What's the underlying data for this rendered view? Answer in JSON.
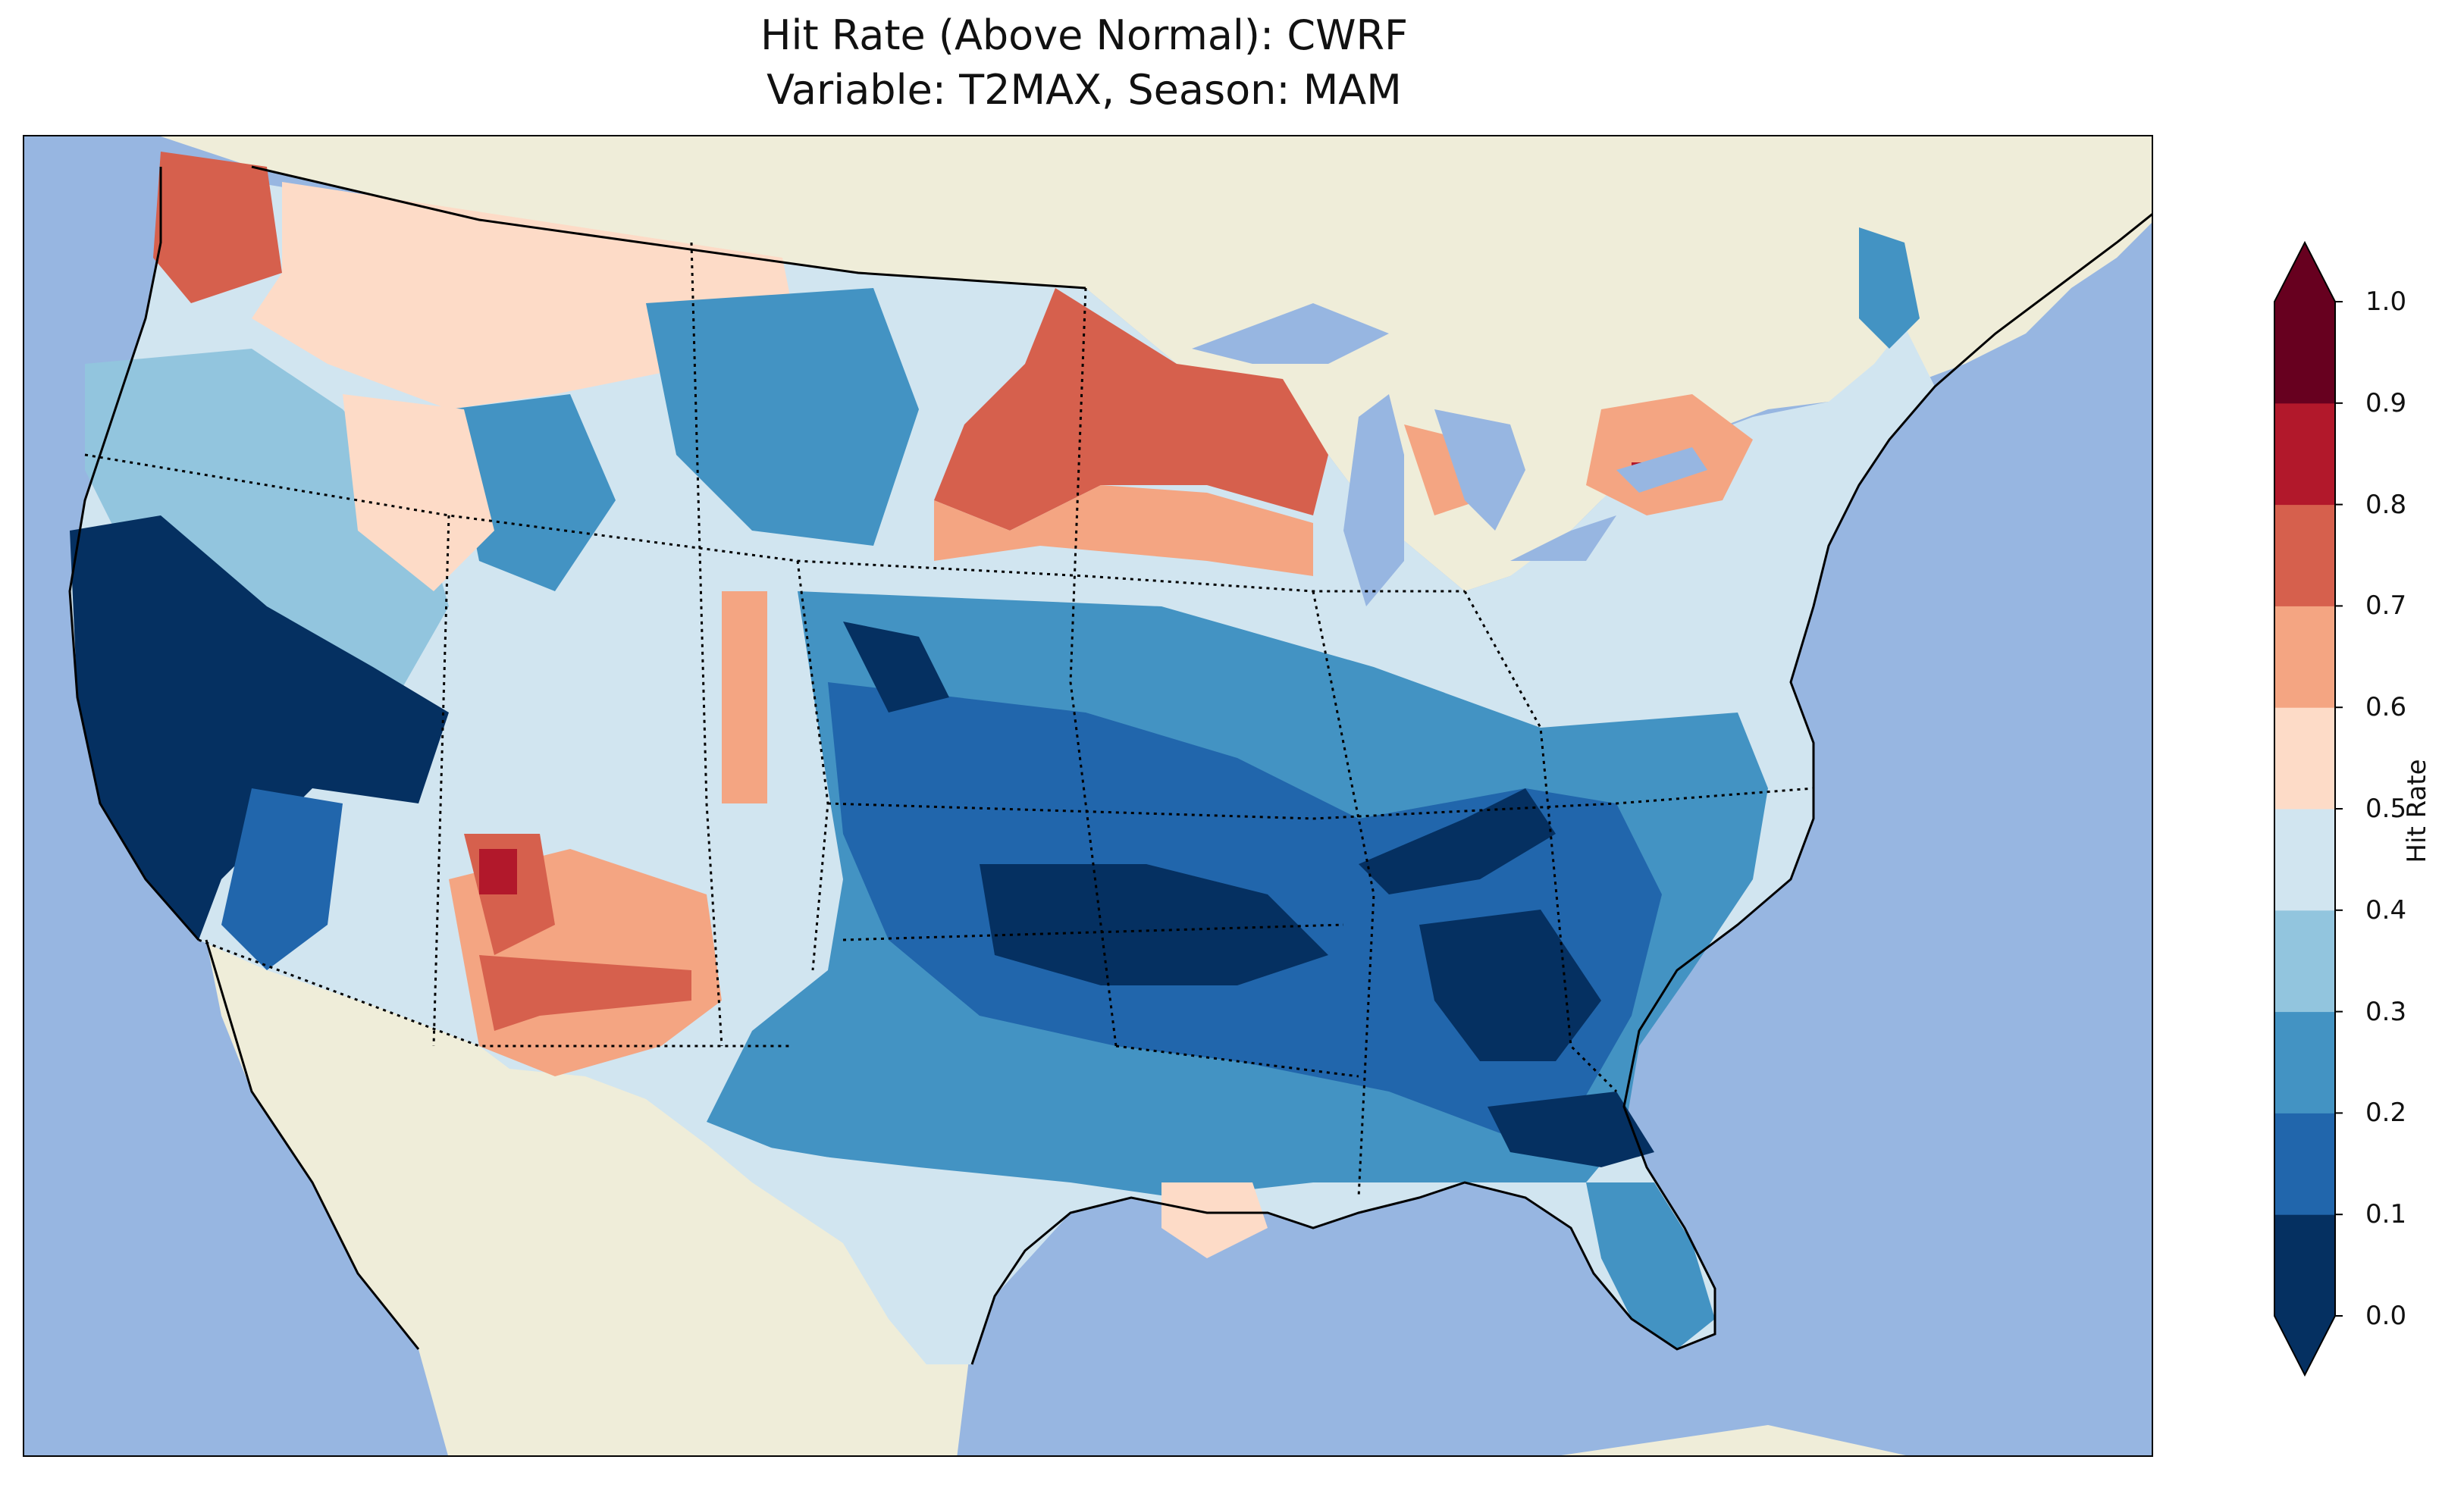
{
  "title": {
    "line1": "Hit Rate (Above Normal): CWRF",
    "line2": "Variable: T2MAX, Season: MAM"
  },
  "map": {
    "ocean_color": "#97b6e1",
    "land_color": "#efedd9",
    "regions": [
      {
        "name": "pacific-northwest-coast",
        "hit_rate_class": "0.7-0.8"
      },
      {
        "name": "california",
        "hit_rate_class": "0.0-0.1"
      },
      {
        "name": "great-basin-north",
        "hit_rate_class": "0.3-0.4"
      },
      {
        "name": "arizona-central",
        "hit_rate_class": "0.8-0.9"
      },
      {
        "name": "new-mexico",
        "hit_rate_class": "0.6-0.7"
      },
      {
        "name": "northern-plains",
        "hit_rate_class": "0.2-0.3"
      },
      {
        "name": "minnesota-wisconsin",
        "hit_rate_class": "0.7-0.8"
      },
      {
        "name": "central-plains-south",
        "hit_rate_class": "0.0-0.1"
      },
      {
        "name": "tennessee-georgia",
        "hit_rate_class": "0.0-0.1"
      },
      {
        "name": "florida",
        "hit_rate_class": "0.2-0.3"
      },
      {
        "name": "texas",
        "hit_rate_class": "0.4-0.5"
      },
      {
        "name": "new-york",
        "hit_rate_class": "0.6-0.7"
      },
      {
        "name": "maine",
        "hit_rate_class": "0.2-0.3"
      }
    ]
  },
  "colorbar": {
    "label": "Hit Rate",
    "ticks": [
      "0.0",
      "0.1",
      "0.2",
      "0.3",
      "0.4",
      "0.5",
      "0.6",
      "0.7",
      "0.8",
      "0.9",
      "1.0"
    ],
    "colors": [
      "#053061",
      "#2166ac",
      "#4393c3",
      "#92c5de",
      "#d1e5f0",
      "#fddbc7",
      "#f4a582",
      "#d6604d",
      "#b2182b",
      "#67001f"
    ],
    "extend": "both"
  }
}
